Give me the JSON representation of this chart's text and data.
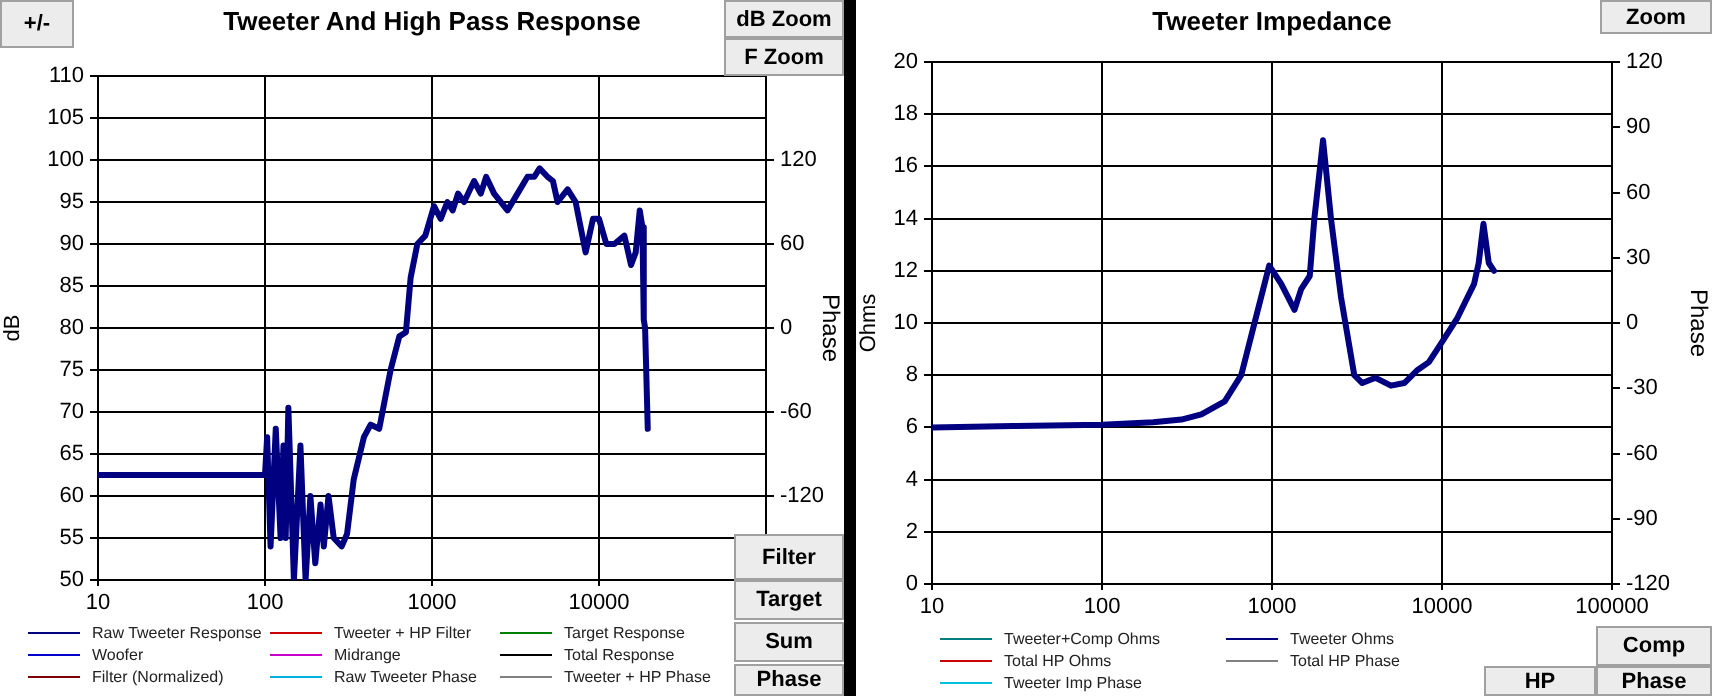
{
  "chart_data": [
    {
      "type": "line",
      "title": "Tweeter And High Pass Response",
      "ylabel": "dB",
      "y2label": "Phase",
      "log": "x",
      "grid": true,
      "legend": "bottom",
      "marker": "none",
      "line_style": "solid",
      "xlim": [
        10,
        100000
      ],
      "xticks": [
        10,
        100,
        1000,
        10000
      ],
      "ylim": [
        50,
        110
      ],
      "yticks": [
        50,
        55,
        60,
        65,
        70,
        75,
        80,
        85,
        90,
        95,
        100,
        105,
        110
      ],
      "y2lim": [
        -180,
        180
      ],
      "y2ticks": [
        -120,
        -60,
        0,
        60,
        120
      ],
      "annotations": [
        "+/-",
        "dB Zoom",
        "F Zoom",
        "Filter",
        "Target",
        "Sum",
        "Phase"
      ],
      "series": [
        {
          "name": "Raw Tweeter Response",
          "color": "#000080",
          "x": [
            10,
            20,
            50,
            100,
            103,
            108,
            116,
            124,
            129,
            133,
            138,
            149,
            163,
            175,
            187,
            200,
            215,
            225,
            240,
            258,
            288,
            310,
            340,
            391,
            429,
            483,
            565,
            637,
            698,
            745,
            817,
            912,
            1028,
            1127,
            1236,
            1330,
            1432,
            1556,
            1786,
            1959,
            2109,
            2355,
            2831,
            3251,
            3733,
            4093,
            4406,
            4920,
            5297,
            5649,
            6486,
            7244,
            8318,
            9204,
            10000,
            11066,
            12359,
            14191,
            15560,
            16596,
            17539,
            18197,
            18535,
            18880,
            19588
          ],
          "values": [
            62.5,
            62.5,
            62.5,
            62.5,
            67,
            54,
            68,
            55,
            66,
            55,
            70.5,
            50,
            66,
            50,
            60,
            52,
            59,
            54,
            60,
            55,
            54,
            55.5,
            62,
            67,
            68.5,
            68,
            75,
            79,
            79.5,
            86,
            90,
            91,
            94.5,
            93,
            95,
            94,
            96,
            95,
            97.5,
            96,
            98,
            96,
            94,
            96,
            98,
            98,
            99,
            98,
            97.5,
            95,
            96.5,
            95,
            89,
            93,
            93,
            90,
            90,
            91,
            87.5,
            89,
            94,
            92,
            81,
            80,
            68
          ]
        },
        {
          "name": "Tweeter + HP Filter",
          "color": "#cc0000"
        },
        {
          "name": "Target Response",
          "color": "#008000"
        },
        {
          "name": "Woofer",
          "color": "#0000cc"
        },
        {
          "name": "Midrange",
          "color": "#cc00cc"
        },
        {
          "name": "Total Response",
          "color": "#000000"
        },
        {
          "name": "Filter (Normalized)",
          "color": "#800000"
        },
        {
          "name": "Raw Tweeter Phase",
          "color": "#00b0e0"
        },
        {
          "name": "Tweeter + HP Phase",
          "color": "#808080"
        }
      ]
    },
    {
      "type": "line",
      "title": "Tweeter Impedance",
      "ylabel": "Ohms",
      "y2label": "Phase",
      "log": "x",
      "grid": true,
      "legend": "bottom",
      "marker": "none",
      "line_style": "solid",
      "xlim": [
        10,
        100000
      ],
      "xticks": [
        10,
        100,
        1000,
        10000,
        100000
      ],
      "ylim": [
        0,
        20
      ],
      "yticks": [
        0,
        2,
        4,
        6,
        8,
        10,
        12,
        14,
        16,
        18,
        20
      ],
      "y2lim": [
        -120,
        120
      ],
      "y2ticks": [
        -120,
        -90,
        -60,
        -30,
        0,
        30,
        60,
        90,
        120
      ],
      "annotations": [
        "Zoom",
        "Comp",
        "HP",
        "Phase"
      ],
      "series": [
        {
          "name": "Tweeter+Comp Ohms",
          "color": "#008080"
        },
        {
          "name": "Tweeter Ohms",
          "color": "#000080",
          "x": [
            10,
            30,
            100,
            200,
            293,
            384,
            527,
            659,
            789,
            963,
            1133,
            1356,
            1484,
            1667,
            1775,
            1996,
            2223,
            2545,
            3048,
            3397,
            4070,
            5010,
            5999,
            7182,
            8370,
            9840,
            12330,
            15450,
            16440,
            17530,
            18840,
            20230
          ],
          "values": [
            6,
            6.05,
            6.1,
            6.2,
            6.3,
            6.5,
            7,
            8,
            10,
            12.2,
            11.5,
            10.5,
            11.3,
            11.8,
            14,
            17,
            14,
            11,
            8,
            7.7,
            7.9,
            7.6,
            7.7,
            8.2,
            8.5,
            9.2,
            10.2,
            11.5,
            12.3,
            13.8,
            12.3,
            12
          ]
        },
        {
          "name": "Total HP Ohms",
          "color": "#cc0000"
        },
        {
          "name": "Total HP Phase",
          "color": "#808080"
        },
        {
          "name": "Tweeter Imp Phase",
          "color": "#00c0e0"
        }
      ]
    }
  ]
}
